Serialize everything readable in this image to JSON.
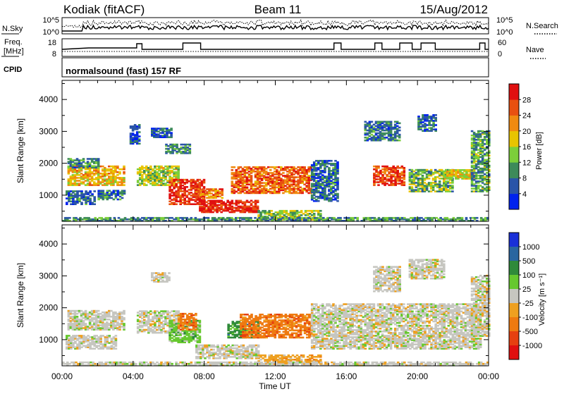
{
  "header": {
    "station": "Kodiak (fitACF)",
    "beam": "Beam 11",
    "date": "15/Aug/2012"
  },
  "noise_panel": {
    "left_label": "N.Sky",
    "right_label": "N.Search",
    "left_ticks": [
      "10^5",
      "10^0"
    ],
    "right_ticks": [
      "10^5",
      "10^0"
    ]
  },
  "freq_panel": {
    "left_label_line1": "Freq.",
    "left_label_line2": "[MHz]",
    "right_label": "Nave",
    "left_ticks": [
      "18",
      "8"
    ],
    "right_ticks": [
      "60",
      "0"
    ]
  },
  "cpid": {
    "label": "CPID",
    "text": "normalsound (fast) 157 RF"
  },
  "colors": {
    "power_scale": [
      "#0022ee",
      "#2a54a8",
      "#3d8a5a",
      "#7ccf3a",
      "#e8c400",
      "#f08a10",
      "#e85010",
      "#e01010"
    ],
    "velocity_scale": [
      "#1a30d8",
      "#2a66a0",
      "#2f8a3a",
      "#66c82e",
      "#c6c6c0",
      "#eea020",
      "#ee7a10",
      "#e64010",
      "#e01010"
    ]
  },
  "chart_data": [
    {
      "type": "heatmap",
      "name": "power",
      "ylabel": "Slant Range [km]",
      "xlabel": "",
      "yticks": [
        1000,
        2000,
        3000,
        4000
      ],
      "ylim": [
        180,
        4600
      ],
      "xlim_hours": [
        0,
        24
      ],
      "xtick_labels": [],
      "colorbar": {
        "label": "Power [dB]",
        "ticks": [
          4,
          8,
          12,
          16,
          20,
          24,
          28
        ],
        "range": [
          0,
          32
        ]
      },
      "regions": [
        {
          "t0": 0.3,
          "t1": 3.5,
          "r0": 1300,
          "r1": 1900,
          "level": 0.62
        },
        {
          "t0": 0.3,
          "t1": 2.0,
          "r0": 1850,
          "r1": 2150,
          "level": 0.28
        },
        {
          "t0": 2.0,
          "t1": 3.5,
          "r0": 850,
          "r1": 1150,
          "level": 0.25
        },
        {
          "t0": 0.2,
          "t1": 1.8,
          "r0": 700,
          "r1": 1150,
          "level": 0.22
        },
        {
          "t0": 4.2,
          "t1": 6.5,
          "r0": 1300,
          "r1": 1900,
          "level": 0.48
        },
        {
          "t0": 5.8,
          "t1": 7.2,
          "r0": 2300,
          "r1": 2600,
          "level": 0.3
        },
        {
          "t0": 6.0,
          "t1": 8.0,
          "r0": 700,
          "r1": 1500,
          "level": 0.9
        },
        {
          "t0": 7.5,
          "t1": 9.0,
          "r0": 900,
          "r1": 1200,
          "level": 0.72
        },
        {
          "t0": 7.7,
          "t1": 11.0,
          "r0": 450,
          "r1": 850,
          "level": 0.92
        },
        {
          "t0": 9.5,
          "t1": 14.0,
          "r0": 1050,
          "r1": 1900,
          "level": 0.78
        },
        {
          "t0": 11.0,
          "t1": 14.5,
          "r0": 220,
          "r1": 500,
          "level": 0.45
        },
        {
          "t0": 14.0,
          "t1": 15.5,
          "r0": 800,
          "r1": 2100,
          "level": 0.22
        },
        {
          "t0": 17.5,
          "t1": 19.3,
          "r0": 1300,
          "r1": 1900,
          "level": 0.85
        },
        {
          "t0": 19.5,
          "t1": 22.0,
          "r0": 1100,
          "r1": 1800,
          "level": 0.4
        },
        {
          "t0": 21.5,
          "t1": 23.3,
          "r0": 1500,
          "r1": 1800,
          "level": 0.55
        },
        {
          "t0": 17.0,
          "t1": 19.0,
          "r0": 2700,
          "r1": 3300,
          "level": 0.25
        },
        {
          "t0": 20.0,
          "t1": 21.0,
          "r0": 3000,
          "r1": 3500,
          "level": 0.22
        },
        {
          "t0": 23.0,
          "t1": 24.0,
          "r0": 1100,
          "r1": 3000,
          "level": 0.35
        },
        {
          "t0": 5.0,
          "t1": 6.2,
          "r0": 2800,
          "r1": 3100,
          "level": 0.2
        },
        {
          "t0": 3.8,
          "t1": 4.3,
          "r0": 2600,
          "r1": 3200,
          "level": 0.18
        },
        {
          "t0": 0.0,
          "t1": 24.0,
          "r0": 180,
          "r1": 280,
          "level": 0.3
        }
      ]
    },
    {
      "type": "heatmap",
      "name": "velocity",
      "ylabel": "Slant Range [km]",
      "xlabel": "Time UT",
      "yticks": [
        1000,
        2000,
        3000,
        4000
      ],
      "ylim": [
        180,
        4600
      ],
      "xlim_hours": [
        0,
        24
      ],
      "xtick_labels": [
        "00:00",
        "04:00",
        "08:00",
        "12:00",
        "16:00",
        "20:00",
        "00:00"
      ],
      "colorbar": {
        "label": "Velocity [m s⁻¹]",
        "ticks": [
          "1000",
          "500",
          "100",
          "25",
          "-25",
          "-100",
          "-500",
          "-1000"
        ]
      },
      "regions": [
        {
          "t0": 0.3,
          "t1": 3.5,
          "r0": 1300,
          "r1": 1900,
          "level": 4
        },
        {
          "t0": 0.2,
          "t1": 3.0,
          "r0": 700,
          "r1": 1150,
          "level": 4
        },
        {
          "t0": 4.2,
          "t1": 6.5,
          "r0": 1200,
          "r1": 1900,
          "level": 4
        },
        {
          "t0": 6.0,
          "t1": 7.8,
          "r0": 900,
          "r1": 1600,
          "level": 3
        },
        {
          "t0": 6.5,
          "t1": 7.5,
          "r0": 1300,
          "r1": 1800,
          "level": 6
        },
        {
          "t0": 7.5,
          "t1": 11.0,
          "r0": 400,
          "r1": 850,
          "level": 4
        },
        {
          "t0": 9.3,
          "t1": 11.0,
          "r0": 1050,
          "r1": 1550,
          "level": 2
        },
        {
          "t0": 10.0,
          "t1": 14.0,
          "r0": 1050,
          "r1": 1800,
          "level": 6
        },
        {
          "t0": 11.0,
          "t1": 14.5,
          "r0": 220,
          "r1": 500,
          "level": 5
        },
        {
          "t0": 14.0,
          "t1": 23.5,
          "r0": 700,
          "r1": 2100,
          "level": 4
        },
        {
          "t0": 17.5,
          "t1": 19.0,
          "r0": 2500,
          "r1": 3300,
          "level": 4
        },
        {
          "t0": 19.5,
          "t1": 21.5,
          "r0": 2900,
          "r1": 3500,
          "level": 4
        },
        {
          "t0": 23.0,
          "t1": 24.0,
          "r0": 1100,
          "r1": 3000,
          "level": 4
        },
        {
          "t0": 5.0,
          "t1": 6.0,
          "r0": 2800,
          "r1": 3100,
          "level": 4
        },
        {
          "t0": 0.0,
          "t1": 24.0,
          "r0": 180,
          "r1": 280,
          "level": 4
        }
      ]
    }
  ]
}
